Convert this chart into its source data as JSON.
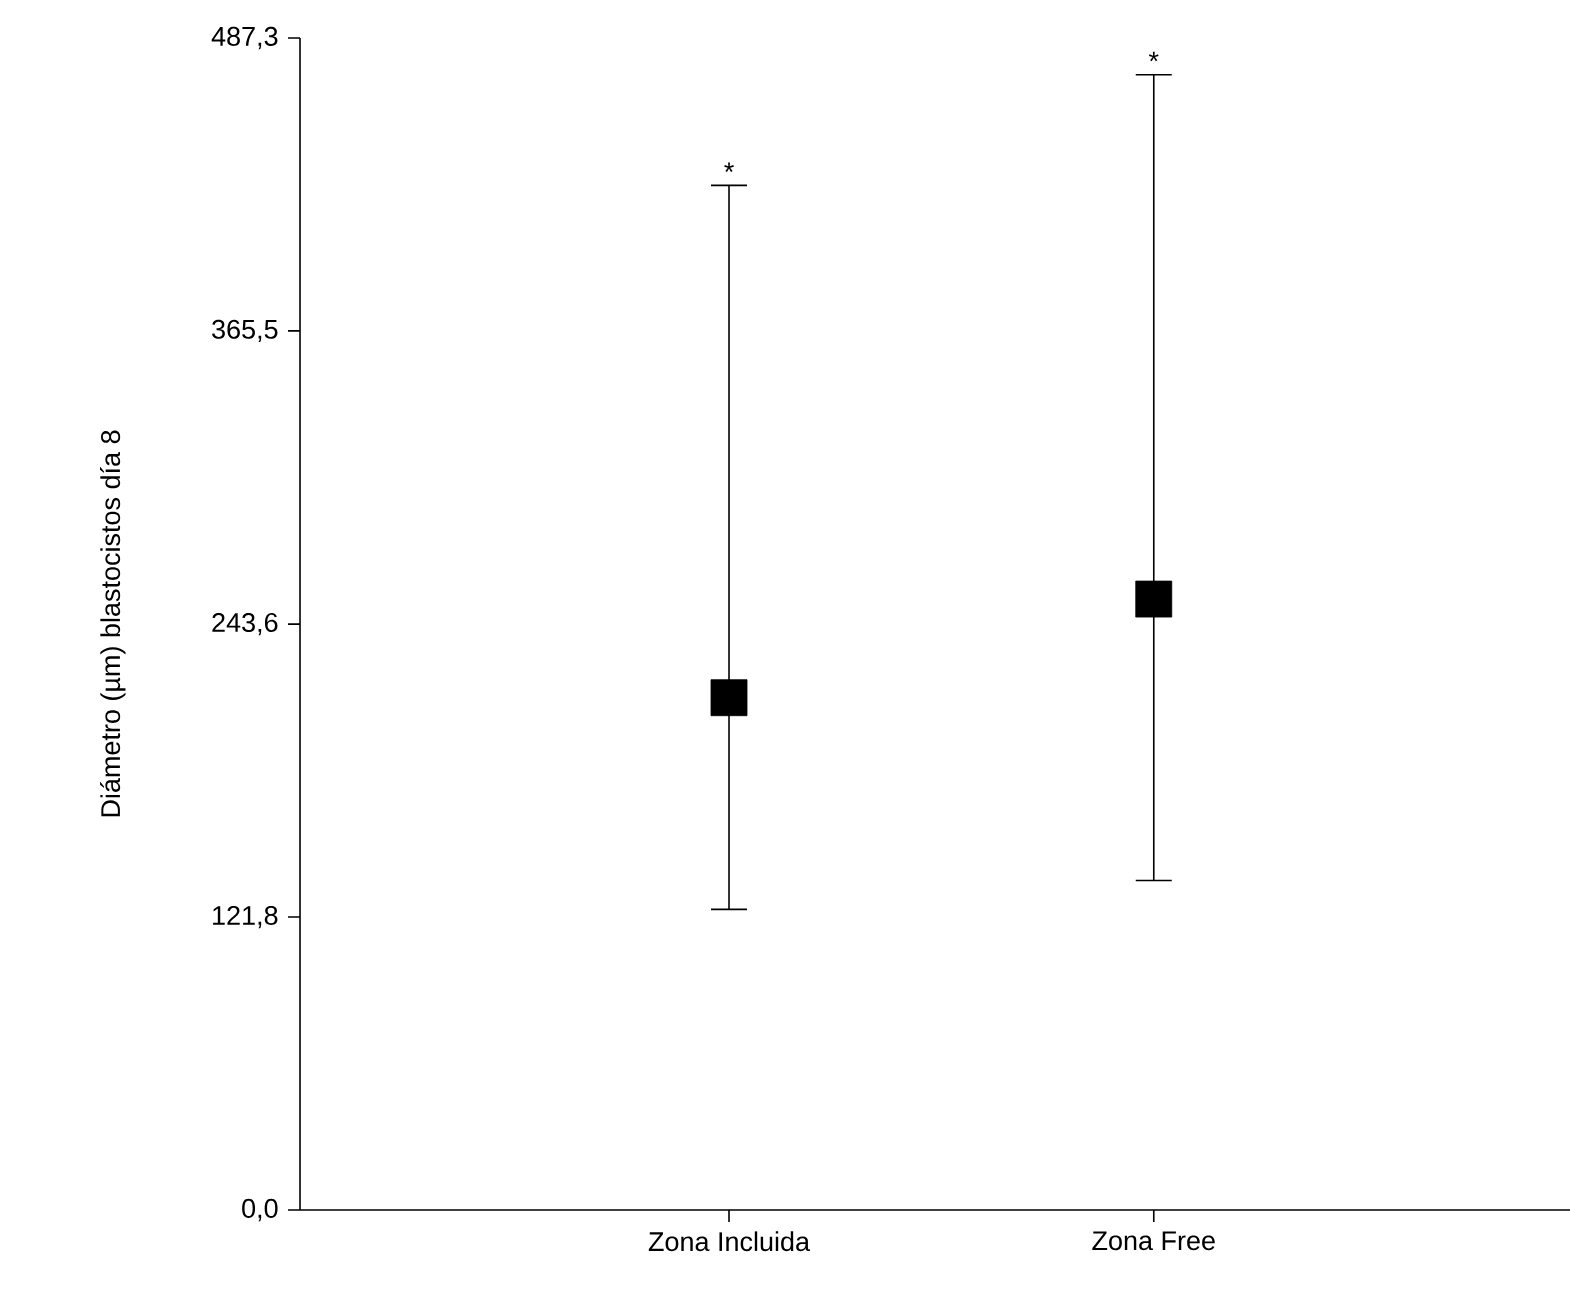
{
  "chart_data": {
    "type": "scatter",
    "ylabel": "Diámetro (µm) blastocistos día 8",
    "categories": [
      "Zona Incluida",
      "Zona Free"
    ],
    "values": [
      213,
      254
    ],
    "color": "#000000",
    "marker": "square",
    "errors": [
      [
        125,
        426
      ],
      [
        137,
        472
      ]
    ],
    "ylim": [
      0,
      487.3
    ],
    "yticks": [
      {
        "value": 0,
        "label": "0,0"
      },
      {
        "value": 121.8,
        "label": "121,8"
      },
      {
        "value": 243.6,
        "label": "243,6"
      },
      {
        "value": 365.5,
        "label": "365,5"
      },
      {
        "value": 487.3,
        "label": "487,3"
      }
    ],
    "grid": false,
    "annotations": [
      "*",
      "*"
    ]
  }
}
